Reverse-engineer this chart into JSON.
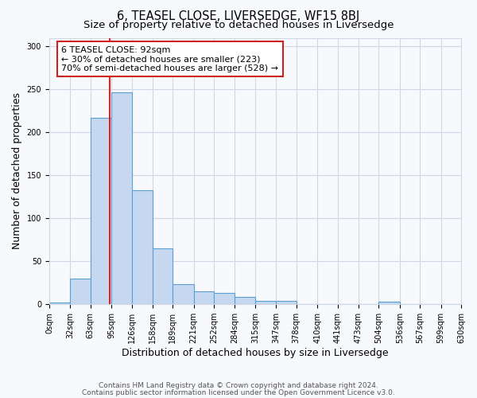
{
  "title": "6, TEASEL CLOSE, LIVERSEDGE, WF15 8BJ",
  "subtitle": "Size of property relative to detached houses in Liversedge",
  "xlabel": "Distribution of detached houses by size in Liversedge",
  "ylabel": "Number of detached properties",
  "bin_edges": [
    0,
    32,
    63,
    95,
    126,
    158,
    189,
    221,
    252,
    284,
    315,
    347,
    378,
    410,
    441,
    473,
    504,
    536,
    567,
    599,
    630
  ],
  "bar_heights": [
    2,
    30,
    217,
    247,
    133,
    65,
    23,
    15,
    13,
    9,
    4,
    4,
    0,
    0,
    0,
    0,
    3,
    0,
    0,
    0
  ],
  "bar_color": "#c5d8f0",
  "bar_edge_color": "#5a9fd4",
  "grid_color": "#d0d8e8",
  "background_color": "#f7f9fc",
  "red_line_x": 92,
  "annotation_line1": "6 TEASEL CLOSE: 92sqm",
  "annotation_line2": "← 30% of detached houses are smaller (223)",
  "annotation_line3": "70% of semi-detached houses are larger (528) →",
  "ylim": [
    0,
    310
  ],
  "yticks": [
    0,
    50,
    100,
    150,
    200,
    250,
    300
  ],
  "xtick_labels": [
    "0sqm",
    "32sqm",
    "63sqm",
    "95sqm",
    "126sqm",
    "158sqm",
    "189sqm",
    "221sqm",
    "252sqm",
    "284sqm",
    "315sqm",
    "347sqm",
    "378sqm",
    "410sqm",
    "441sqm",
    "473sqm",
    "504sqm",
    "536sqm",
    "567sqm",
    "599sqm",
    "630sqm"
  ],
  "footnote1": "Contains HM Land Registry data © Crown copyright and database right 2024.",
  "footnote2": "Contains public sector information licensed under the Open Government Licence v3.0.",
  "title_fontsize": 10.5,
  "subtitle_fontsize": 9.5,
  "axis_label_fontsize": 9,
  "tick_fontsize": 7,
  "annotation_fontsize": 8,
  "footnote_fontsize": 6.5
}
